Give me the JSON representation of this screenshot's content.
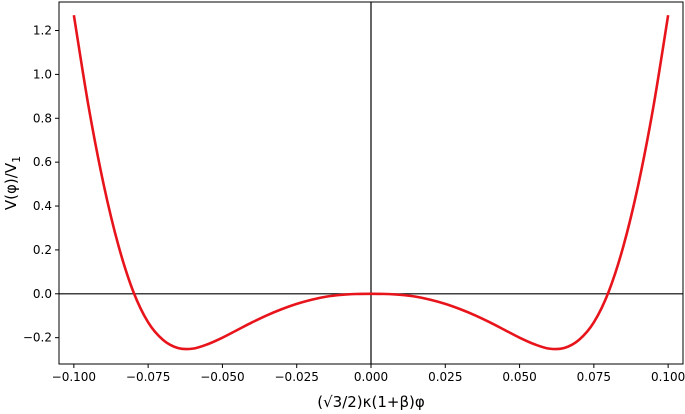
{
  "chart_data": {
    "type": "line",
    "title": "",
    "xlabel": "(√3/2)κ(1+β)φ",
    "ylabel": "V(φ)/V",
    "ylabel_subscript": "1",
    "xlim": [
      -0.105,
      0.105
    ],
    "ylim": [
      -0.32,
      1.33
    ],
    "x_ticks": [
      -0.1,
      -0.075,
      -0.05,
      -0.025,
      0.0,
      0.025,
      0.05,
      0.075,
      0.1
    ],
    "x_tick_labels": [
      "−0.100",
      "−0.075",
      "−0.050",
      "−0.025",
      "0.000",
      "0.025",
      "0.050",
      "0.075",
      "0.100"
    ],
    "y_ticks": [
      -0.2,
      0.0,
      0.2,
      0.4,
      0.6,
      0.8,
      1.0,
      1.2
    ],
    "y_tick_labels": [
      "−0.2",
      "0.0",
      "0.2",
      "0.4",
      "0.6",
      "0.8",
      "1.0",
      "1.2"
    ],
    "grid": false,
    "reference_lines": {
      "x": 0,
      "y": 0,
      "color": "#000000"
    },
    "series": [
      {
        "color": "#e8141c",
        "x": [
          -0.1,
          -0.095,
          -0.09,
          -0.085,
          -0.08,
          -0.075,
          -0.07,
          -0.065,
          -0.06,
          -0.055,
          -0.05,
          -0.045,
          -0.04,
          -0.035,
          -0.03,
          -0.025,
          -0.02,
          -0.015,
          -0.01,
          -0.005,
          0.0,
          0.005,
          0.01,
          0.015,
          0.02,
          0.025,
          0.03,
          0.035,
          0.04,
          0.045,
          0.05,
          0.055,
          0.06,
          0.065,
          0.07,
          0.075,
          0.08,
          0.085,
          0.09,
          0.095,
          0.1
        ],
        "y": [
          1.27,
          0.85,
          0.5,
          0.22,
          0.01,
          -0.13,
          -0.21,
          -0.247,
          -0.25,
          -0.23,
          -0.2,
          -0.165,
          -0.13,
          -0.098,
          -0.07,
          -0.046,
          -0.027,
          -0.013,
          -0.005,
          -0.001,
          0.0,
          -0.001,
          -0.005,
          -0.013,
          -0.027,
          -0.046,
          -0.07,
          -0.098,
          -0.13,
          -0.165,
          -0.2,
          -0.23,
          -0.25,
          -0.247,
          -0.21,
          -0.13,
          0.01,
          0.22,
          0.5,
          0.85,
          1.27
        ]
      }
    ]
  }
}
